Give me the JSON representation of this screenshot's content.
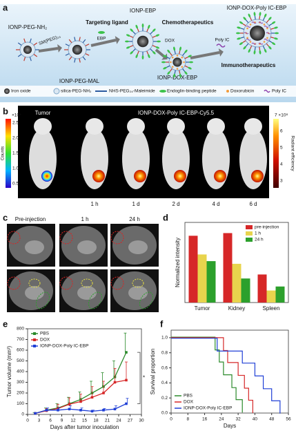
{
  "panel_labels": [
    "a",
    "b",
    "c",
    "d",
    "e",
    "f"
  ],
  "schematic": {
    "steps": [
      "IONP-PEG-NH₂",
      "SM(PEG)₂₄",
      "IONP-PEG-MAL",
      "Targeting ligand",
      "EBP",
      "IONP-EBP",
      "Chemotherapeutics",
      "DOX",
      "IONP-DOX-EBP",
      "Poly IC",
      "IONP-DOX-Poly IC-EBP",
      "Immunotherapeutics"
    ],
    "legend": [
      "Iron oxide",
      "silica-PEG-NH₂",
      "NHS-PEG₂₄-Maleimide",
      "Endoglin-binding peptide",
      "Doxorubicin",
      "Poly IC"
    ]
  },
  "imaging": {
    "group_labels": [
      "Tumor",
      "IONP-DOX-Poly IC-EBP-Cy5.5"
    ],
    "timepoints": [
      "1 h",
      "1 d",
      "2 d",
      "4 d",
      "6 d"
    ],
    "left_scale": {
      "label": "Counts",
      "exponent": "×10⁴",
      "ticks": [
        "2.5",
        "2.0",
        "1.5",
        "1.0",
        "0.5"
      ]
    },
    "right_scale": {
      "label": "Radiant efficiency",
      "exponent": "7 ×10⁸",
      "ticks": [
        "6",
        "5",
        "4",
        "3"
      ]
    },
    "mri_labels": [
      "Pre-injection",
      "1 h",
      "24 h"
    ]
  },
  "chart_data": [
    {
      "type": "bar",
      "ylabel": "Normalized intensity",
      "categories": [
        "Tumor",
        "Kidney",
        "Spleen"
      ],
      "ylim": [
        0,
        0.6
      ],
      "series": [
        {
          "name": "pre-injection",
          "color": "#d62728",
          "values": [
            0.5,
            0.52,
            0.21
          ]
        },
        {
          "name": "1 h",
          "color": "#e8d44d",
          "values": [
            0.36,
            0.29,
            0.09
          ]
        },
        {
          "name": "24 h",
          "color": "#2ca02c",
          "values": [
            0.31,
            0.18,
            0.12
          ]
        }
      ],
      "legend": "upper right"
    },
    {
      "type": "line",
      "xlabel": "Days after tumor inoculation",
      "ylabel": "Tumor volume (mm³)",
      "annotation": "*",
      "xlim": [
        0,
        30
      ],
      "ylim": [
        0,
        800
      ],
      "xticks": [
        0,
        3,
        6,
        9,
        12,
        15,
        18,
        21,
        24,
        27,
        30
      ],
      "yticks": [
        0,
        100,
        200,
        300,
        400,
        500,
        600,
        700,
        800
      ],
      "x": [
        2,
        5,
        8,
        11,
        14,
        17,
        20,
        23,
        26
      ],
      "series": [
        {
          "name": "PBS",
          "color": "#2a8a2a",
          "values": [
            10,
            40,
            60,
            100,
            140,
            200,
            260,
            350,
            580
          ],
          "errors": [
            5,
            20,
            40,
            60,
            70,
            110,
            130,
            150,
            180
          ]
        },
        {
          "name": "DOX",
          "color": "#d62728",
          "values": [
            10,
            35,
            55,
            95,
            120,
            160,
            200,
            300,
            320
          ],
          "errors": [
            5,
            20,
            40,
            60,
            70,
            100,
            110,
            130,
            170
          ]
        },
        {
          "name": "IONP-DOX-Poly IC-EBP",
          "color": "#1f3fd6",
          "values": [
            10,
            40,
            40,
            50,
            40,
            30,
            40,
            50,
            100
          ],
          "errors": [
            5,
            20,
            20,
            30,
            20,
            10,
            15,
            30,
            50
          ]
        }
      ],
      "legend": "upper left"
    },
    {
      "type": "step",
      "xlabel": "Days",
      "ylabel": "Survival proportion",
      "xlim": [
        0,
        56
      ],
      "ylim": [
        0,
        1.1
      ],
      "xticks": [
        0,
        8,
        16,
        24,
        32,
        40,
        48,
        56
      ],
      "yticks": [
        {
          "value": 0,
          "label": "0.0"
        },
        {
          "value": 0.2,
          "label": "0.2"
        },
        {
          "value": 0.4,
          "label": "0.4"
        },
        {
          "value": 0.6,
          "label": "0.6"
        },
        {
          "value": 0.8,
          "label": "0.8"
        },
        {
          "value": 1,
          "label": "1.0"
        }
      ],
      "series": [
        {
          "name": "PBS",
          "color": "#2a8a2a",
          "x": [
            0,
            21,
            23,
            25,
            29,
            31,
            34
          ],
          "values": [
            1,
            0.83,
            0.67,
            0.5,
            0.33,
            0.17,
            0
          ]
        },
        {
          "name": "DOX",
          "color": "#d62728",
          "x": [
            0,
            25,
            27,
            32,
            35,
            37,
            39
          ],
          "values": [
            1,
            0.83,
            0.67,
            0.5,
            0.33,
            0.17,
            0
          ]
        },
        {
          "name": "IONP-DOX-Poly IC-EBP",
          "color": "#1f3fd6",
          "x": [
            0,
            22,
            34,
            40,
            44,
            48,
            52
          ],
          "values": [
            1,
            0.83,
            0.67,
            0.5,
            0.33,
            0.17,
            0
          ]
        }
      ],
      "legend": "lower left"
    }
  ]
}
